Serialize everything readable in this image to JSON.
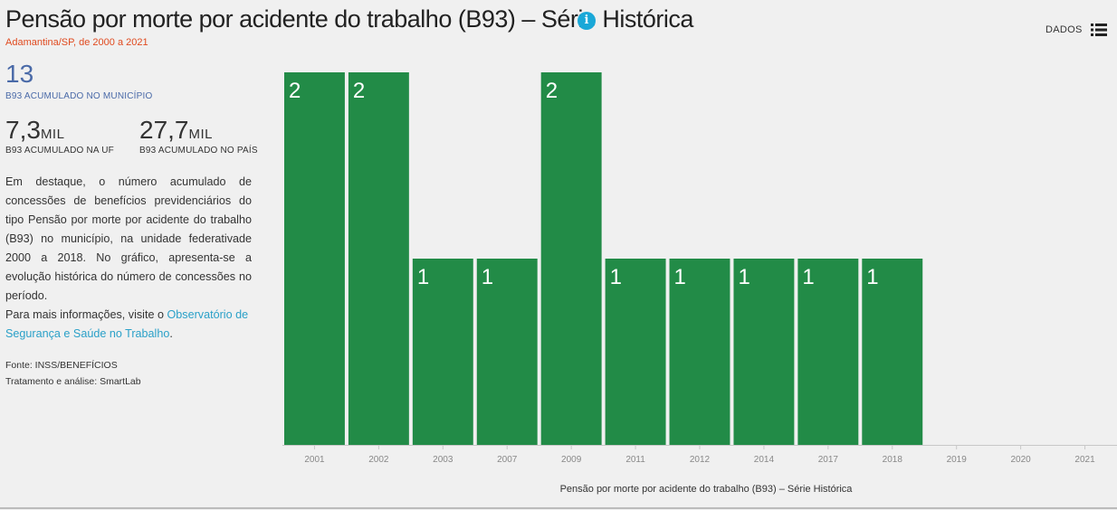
{
  "header": {
    "title": "Pensão por morte por acidente do trabalho (B93) – Série Histórica",
    "subtitle": "Adamantina/SP, de 2000 a 2021",
    "data_button_label": "DADOS"
  },
  "kpis": {
    "municipio": {
      "value": "13",
      "label": "B93 ACUMULADO NO MUNICÍPIO"
    },
    "uf": {
      "value": "7,3",
      "unit": "MIL",
      "label": "B93 ACUMULADO NA UF"
    },
    "pais": {
      "value": "27,7",
      "unit": "MIL",
      "label": "B93 ACUMULADO NO PAÍS"
    }
  },
  "description": "Em destaque, o número acumulado de concessões de benefícios previdenciários do tipo Pensão por morte por acidente do trabalho (B93) no município, na unidade federativade 2000 a 2018. No gráfico, apresenta-se a evolução histórica do número de concessões no período.",
  "more_info": {
    "prefix": "Para mais informações, visite o ",
    "link_text": "Observatório de Segurança e Saúde no Trabalho",
    "suffix": "."
  },
  "source": {
    "fonte": "Fonte: INSS/BENEFÍCIOS",
    "tratamento": "Tratamento e análise: SmartLab"
  },
  "colors": {
    "bar": "#228b47",
    "accent": "#1aa8d8",
    "subtitle": "#e04a1f",
    "kpi_main": "#4a6aa8"
  },
  "chart_data": {
    "type": "bar",
    "categories": [
      "2001",
      "2002",
      "2003",
      "2007",
      "2009",
      "2011",
      "2012",
      "2014",
      "2017",
      "2018",
      "2019",
      "2020",
      "2021"
    ],
    "values": [
      2,
      2,
      1,
      1,
      2,
      1,
      1,
      1,
      1,
      1,
      0,
      0,
      0
    ],
    "xlabel": "Pensão por morte por acidente do trabalho (B93) – Série Histórica",
    "ylabel": "",
    "ylim": [
      0,
      2
    ],
    "grid": false,
    "data_labels": true
  }
}
